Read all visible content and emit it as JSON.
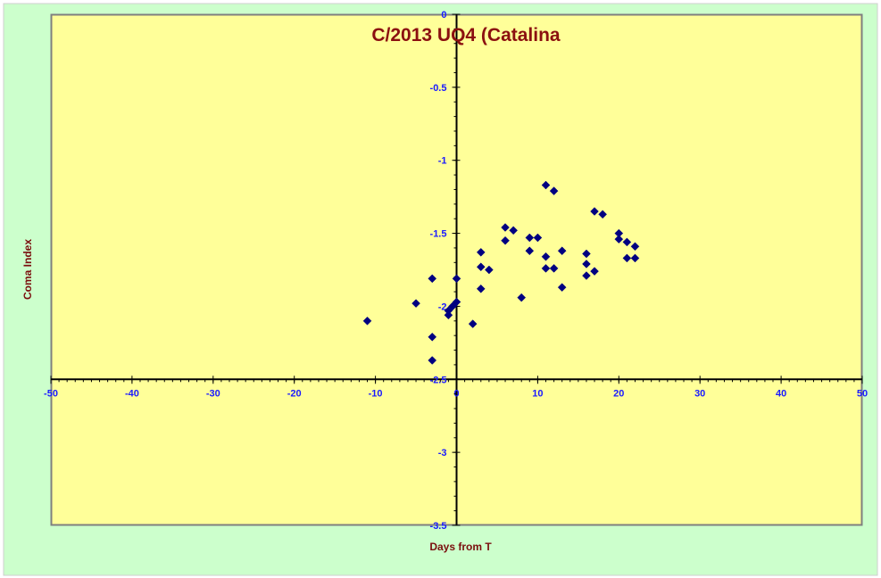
{
  "colors": {
    "outer_background": "#ccffcc",
    "plot_background": "#ffff99",
    "plot_border": "#7f7f7f",
    "axis": "#000000",
    "tick_label": "#1a1aff",
    "title": "#8b1010",
    "axis_title": "#7a0d0d",
    "marker": "#000080"
  },
  "chart_data": {
    "type": "scatter",
    "title": "C/2013 UQ4 (Catalina",
    "xlabel": "Days from T",
    "ylabel": "Coma Index",
    "xlim": [
      -50,
      50
    ],
    "ylim": [
      -3.5,
      0
    ],
    "x_ticks": [
      -50,
      -40,
      -30,
      -20,
      -10,
      0,
      10,
      20,
      30,
      40,
      50
    ],
    "y_ticks": [
      0,
      -0.5,
      -1,
      -1.5,
      -2,
      -2.5,
      -3,
      -3.5
    ],
    "x_tick_labels": [
      "-50",
      "-40",
      "-30",
      "-20",
      "-10",
      "0",
      "10",
      "20",
      "30",
      "40",
      "50"
    ],
    "y_tick_labels": [
      "0",
      "-0.5",
      "-1",
      "-1.5",
      "-2",
      "-2.5",
      "-3",
      "-3.5"
    ],
    "marker": "diamond",
    "grid": false,
    "legend": "none",
    "points": [
      {
        "x": -11,
        "y": -2.1
      },
      {
        "x": -5,
        "y": -1.98
      },
      {
        "x": -3,
        "y": -1.81
      },
      {
        "x": -3,
        "y": -2.21
      },
      {
        "x": -3,
        "y": -2.37
      },
      {
        "x": -1,
        "y": -2.03
      },
      {
        "x": -1,
        "y": -2.06
      },
      {
        "x": -0.5,
        "y": -2.0
      },
      {
        "x": 0,
        "y": -1.81
      },
      {
        "x": 0,
        "y": -1.97
      },
      {
        "x": 2,
        "y": -2.12
      },
      {
        "x": 3,
        "y": -1.63
      },
      {
        "x": 3,
        "y": -1.73
      },
      {
        "x": 3,
        "y": -1.88
      },
      {
        "x": 4,
        "y": -1.75
      },
      {
        "x": 6,
        "y": -1.46
      },
      {
        "x": 6,
        "y": -1.55
      },
      {
        "x": 7,
        "y": -1.48
      },
      {
        "x": 8,
        "y": -1.94
      },
      {
        "x": 9,
        "y": -1.53
      },
      {
        "x": 9,
        "y": -1.62
      },
      {
        "x": 10,
        "y": -1.53
      },
      {
        "x": 11,
        "y": -1.17
      },
      {
        "x": 11,
        "y": -1.66
      },
      {
        "x": 11,
        "y": -1.74
      },
      {
        "x": 12,
        "y": -1.21
      },
      {
        "x": 12,
        "y": -1.74
      },
      {
        "x": 13,
        "y": -1.62
      },
      {
        "x": 13,
        "y": -1.87
      },
      {
        "x": 16,
        "y": -1.64
      },
      {
        "x": 16,
        "y": -1.71
      },
      {
        "x": 16,
        "y": -1.79
      },
      {
        "x": 17,
        "y": -1.35
      },
      {
        "x": 17,
        "y": -1.76
      },
      {
        "x": 18,
        "y": -1.37
      },
      {
        "x": 20,
        "y": -1.5
      },
      {
        "x": 20,
        "y": -1.54
      },
      {
        "x": 21,
        "y": -1.56
      },
      {
        "x": 21,
        "y": -1.67
      },
      {
        "x": 22,
        "y": -1.59
      },
      {
        "x": 22,
        "y": -1.67
      }
    ]
  }
}
